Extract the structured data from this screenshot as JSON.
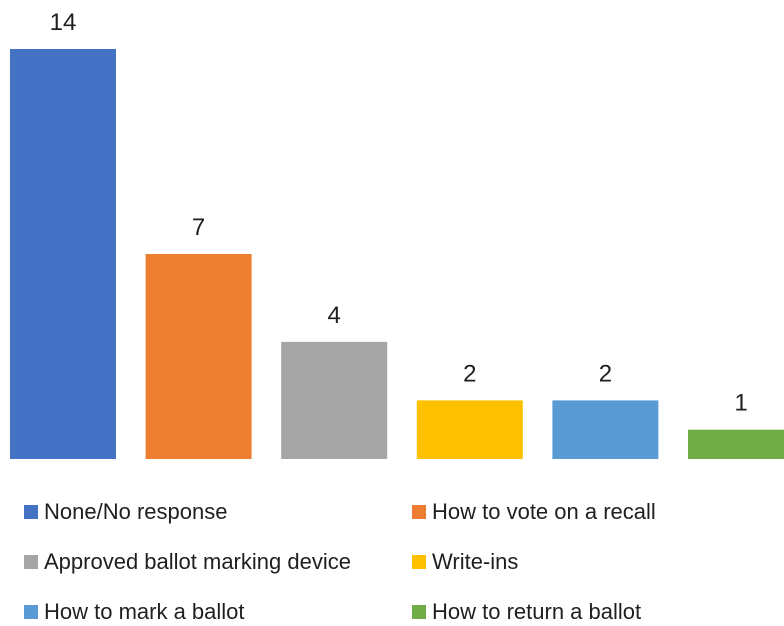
{
  "chart_data": {
    "type": "bar",
    "categories": [
      "None/No response",
      "How to vote on a recall",
      "Approved ballot marking device",
      "Write-ins",
      "How to mark a ballot",
      "How to return a ballot"
    ],
    "values": [
      14,
      7,
      4,
      2,
      2,
      1
    ],
    "colors": [
      "#4472C4",
      "#ED7D31",
      "#A5A5A5",
      "#FFC000",
      "#5B9BD5",
      "#70AD47"
    ],
    "data_labels": [
      "14",
      "7",
      "4",
      "2",
      "2",
      "1"
    ],
    "ylim": [
      0,
      14
    ],
    "grid": false,
    "legend_position": "bottom",
    "legend": [
      {
        "label": "None/No response",
        "color": "#4472C4"
      },
      {
        "label": "How to vote on a recall",
        "color": "#ED7D31"
      },
      {
        "label": "Approved ballot marking device",
        "color": "#A5A5A5"
      },
      {
        "label": "Write-ins",
        "color": "#FFC000"
      },
      {
        "label": "How to mark a ballot",
        "color": "#5B9BD5"
      },
      {
        "label": "How to return a ballot",
        "color": "#70AD47"
      }
    ]
  }
}
